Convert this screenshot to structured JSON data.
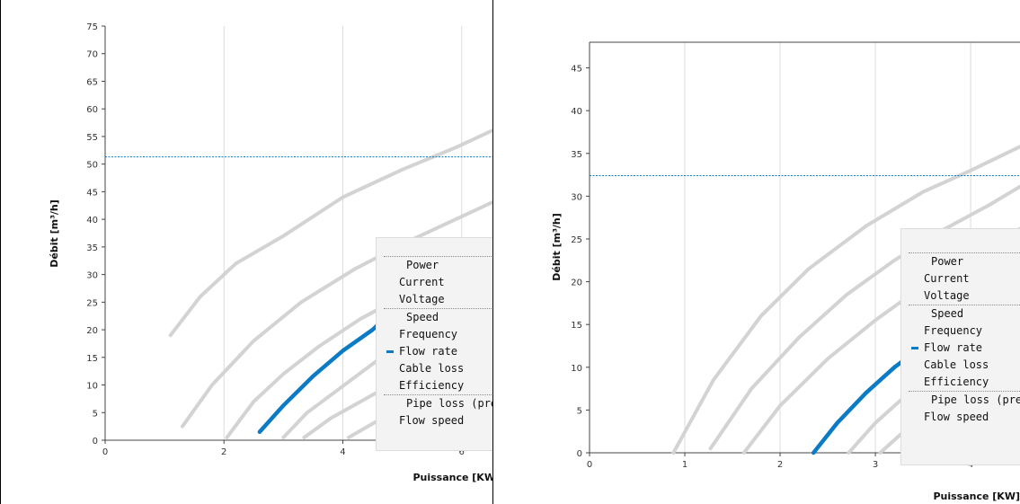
{
  "colors": {
    "active_curve": "#0a7bc4",
    "curve": "#d3d3d3",
    "reference": "#0a7bc4",
    "grid": "#dcdcdc"
  },
  "legend_items": [
    "Power",
    "Current",
    "Voltage",
    "Speed",
    "Frequency",
    "Flow rate",
    "Cable loss",
    "Efficiency",
    "Pipe loss (pressure)",
    "Flow speed"
  ],
  "legend_active": "Flow rate",
  "chart_data": [
    {
      "type": "line",
      "xlabel": "Puissance [KW]",
      "ylabel": "Débit [m³/h]",
      "xlim": [
        0,
        6.7
      ],
      "ylim": [
        0,
        75
      ],
      "x_ticks": [
        0,
        2,
        4,
        6
      ],
      "y_ticks": [
        0,
        5,
        10,
        15,
        20,
        25,
        30,
        35,
        40,
        45,
        50,
        55,
        60,
        65,
        70,
        75
      ],
      "grid": true,
      "legend_position": "right",
      "reference_line_y": 51.3,
      "series": [
        {
          "x": [
            1.1,
            1.6,
            2.2,
            3.0,
            4.0,
            5.0,
            5.9,
            6.7
          ],
          "y": [
            19,
            26,
            32,
            37,
            44,
            49,
            53,
            57
          ]
        },
        {
          "x": [
            1.3,
            1.8,
            2.5,
            3.3,
            4.2,
            5.1,
            5.9,
            6.7
          ],
          "y": [
            2.5,
            10,
            18,
            25,
            31,
            36,
            40,
            44
          ]
        },
        {
          "x": [
            2.05,
            2.5,
            3.0,
            3.6,
            4.3,
            5.0,
            5.7,
            6.7
          ],
          "y": [
            0.5,
            7,
            12,
            17,
            22,
            26,
            30,
            35
          ]
        },
        {
          "x": [
            2.6,
            3.0,
            3.5,
            4.0,
            4.5,
            4.6
          ],
          "y": [
            1.5,
            6.3,
            11.6,
            16.2,
            20,
            21
          ],
          "active": true,
          "name": "Flow rate"
        },
        {
          "x": [
            3.0,
            3.4,
            3.9,
            4.4,
            4.9,
            5.4,
            6.0,
            6.7
          ],
          "y": [
            0.5,
            5,
            9,
            13,
            17,
            20,
            24,
            28
          ]
        },
        {
          "x": [
            3.35,
            3.8,
            4.3,
            4.8,
            5.3,
            5.8,
            6.3,
            6.7
          ],
          "y": [
            0.5,
            4,
            7,
            10,
            13,
            16,
            18,
            20
          ]
        },
        {
          "x": [
            4.1,
            4.5,
            5.0,
            5.5,
            6.0,
            6.5,
            6.7
          ],
          "y": [
            0.5,
            3,
            6,
            9,
            12,
            14,
            15
          ]
        }
      ]
    },
    {
      "type": "line",
      "xlabel": "Puissance [KW]",
      "ylabel": "Débit [m³/h]",
      "xlim": [
        0,
        4.65
      ],
      "ylim": [
        0,
        48
      ],
      "x_ticks": [
        0,
        1,
        2,
        3,
        4
      ],
      "y_ticks": [
        0,
        5,
        10,
        15,
        20,
        25,
        30,
        35,
        40,
        45
      ],
      "grid": true,
      "legend_position": "right",
      "reference_line_y": 32.4,
      "series": [
        {
          "x": [
            0.88,
            1.3,
            1.8,
            2.3,
            2.9,
            3.5,
            4.0,
            4.65
          ],
          "y": [
            0,
            8.5,
            16,
            21.5,
            26.5,
            30.5,
            33,
            36.5
          ]
        },
        {
          "x": [
            1.27,
            1.7,
            2.2,
            2.7,
            3.2,
            3.7,
            4.2,
            4.65
          ],
          "y": [
            0.5,
            7.5,
            13.5,
            18.5,
            22.5,
            26,
            29,
            32
          ]
        },
        {
          "x": [
            1.62,
            2.0,
            2.5,
            3.0,
            3.5,
            4.0,
            4.65
          ],
          "y": [
            0,
            5.5,
            11,
            15.5,
            19.5,
            23,
            27
          ]
        },
        {
          "x": [
            2.35,
            2.6,
            2.9,
            3.2,
            3.5,
            3.7
          ],
          "y": [
            0,
            3.5,
            7,
            10,
            12.5,
            14
          ],
          "active": true,
          "name": "Flow rate"
        },
        {
          "x": [
            2.72,
            3.0,
            3.4,
            3.8,
            4.2,
            4.65
          ],
          "y": [
            0,
            3.5,
            7.5,
            11,
            14.5,
            18
          ]
        },
        {
          "x": [
            3.05,
            3.4,
            3.8,
            4.2,
            4.65
          ],
          "y": [
            0,
            3.5,
            7,
            10.5,
            14
          ]
        },
        {
          "x": [
            3.6,
            3.9,
            4.3,
            4.65
          ],
          "y": [
            0,
            3,
            6,
            8.5
          ]
        }
      ]
    }
  ]
}
